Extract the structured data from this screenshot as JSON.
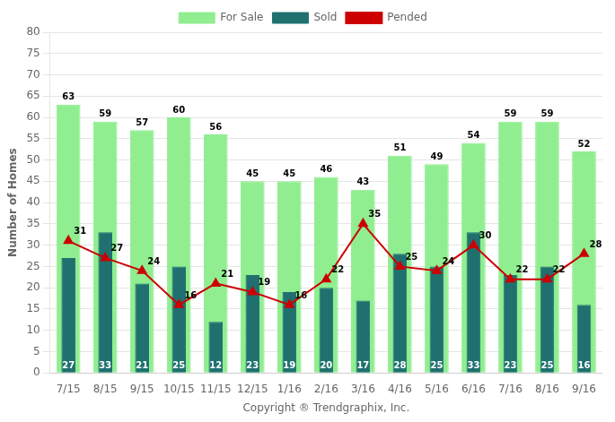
{
  "chart_data": {
    "type": "bar",
    "categories": [
      "7/15",
      "8/15",
      "9/15",
      "10/15",
      "11/15",
      "12/15",
      "1/16",
      "2/16",
      "3/16",
      "4/16",
      "5/16",
      "6/16",
      "7/16",
      "8/16",
      "9/16"
    ],
    "series": [
      {
        "name": "For Sale",
        "type": "bar",
        "color": "#90ee90",
        "values": [
          63,
          59,
          57,
          60,
          56,
          45,
          45,
          46,
          43,
          51,
          49,
          54,
          59,
          59,
          52
        ]
      },
      {
        "name": "Sold",
        "type": "bar",
        "color": "#207070",
        "values": [
          27,
          33,
          21,
          25,
          12,
          23,
          19,
          20,
          17,
          28,
          25,
          33,
          23,
          25,
          16
        ]
      },
      {
        "name": "Pended",
        "type": "line",
        "color": "#cc0000",
        "marker": "triangle",
        "values": [
          31,
          27,
          24,
          16,
          21,
          19,
          16,
          22,
          35,
          25,
          24,
          30,
          22,
          22,
          28
        ]
      }
    ],
    "ylabel": "Number of Homes",
    "xlabel": "Copyright ® Trendgraphix, Inc.",
    "ylim": [
      0,
      80
    ],
    "yticks": [
      0,
      5,
      10,
      15,
      20,
      25,
      30,
      35,
      40,
      45,
      50,
      55,
      60,
      65,
      70,
      75,
      80
    ],
    "grid": true,
    "legend": "top",
    "data_labels": true
  }
}
